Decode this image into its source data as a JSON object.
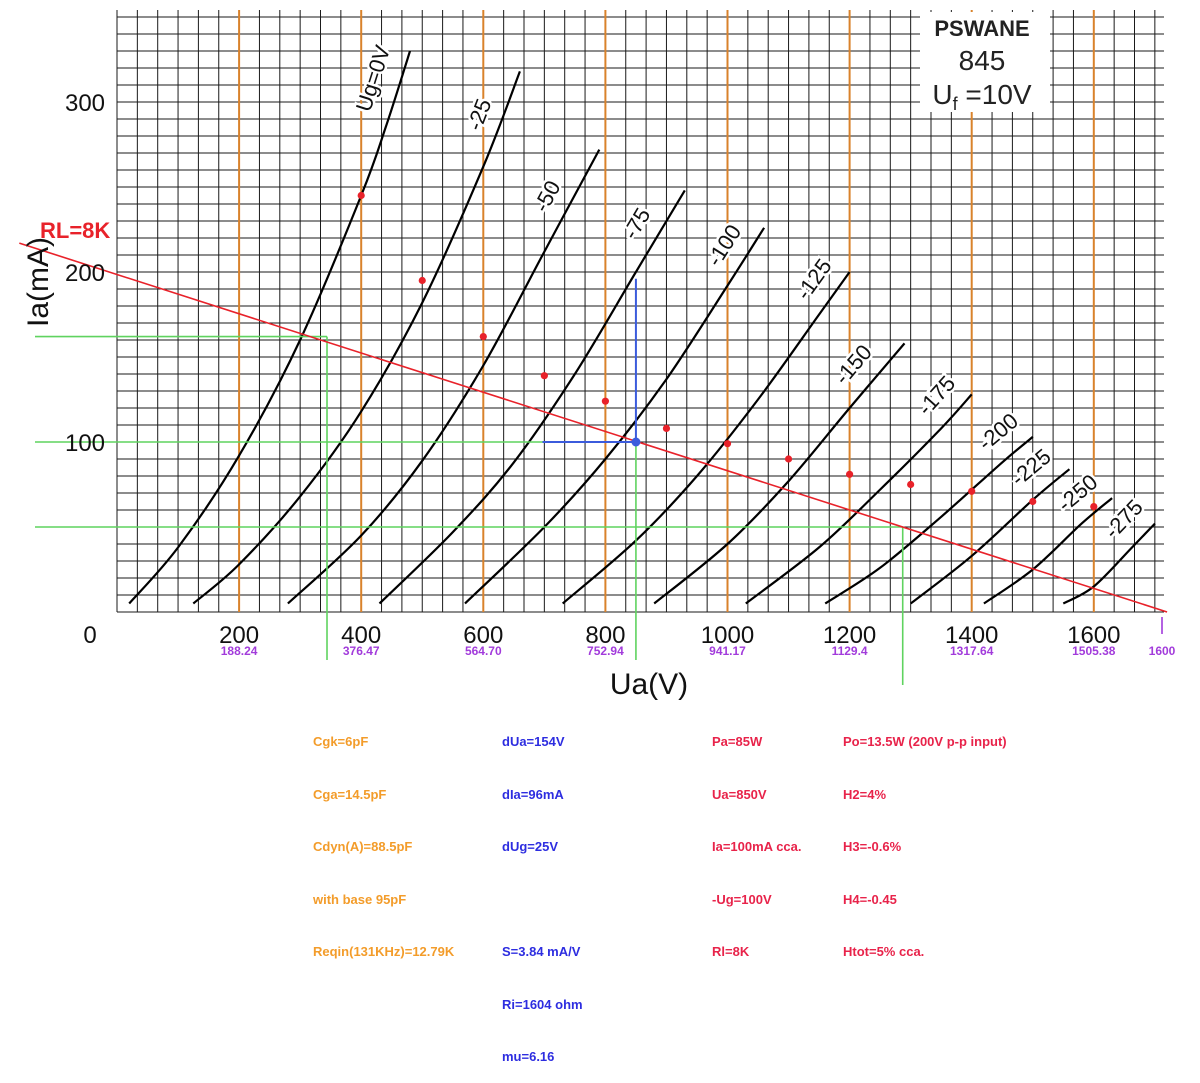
{
  "chart_data": {
    "type": "line",
    "tube": {
      "brand": "PSWANE",
      "model": "845",
      "filament_prefix": "U",
      "filament_sub": "f",
      "filament_value": " =10V"
    },
    "xlabel": "Ua(V)",
    "ylabel": "Ia(mA)",
    "xlim": [
      0,
      1700
    ],
    "ylim": [
      0,
      350
    ],
    "x_ticks": [
      "0",
      "200",
      "400",
      "600",
      "800",
      "1000",
      "1200",
      "1400",
      "1600"
    ],
    "y_ticks": [
      "100",
      "200",
      "300"
    ],
    "scaled_ticks": [
      "188.24",
      "376.47",
      "564.70",
      "752.94",
      "941.17",
      "1129.4",
      "1317.64",
      "1505.38",
      "1600"
    ],
    "grid": true,
    "ug_curves": [
      {
        "label": "Ug=0V",
        "points": [
          [
            20,
            5
          ],
          [
            100,
            38
          ],
          [
            200,
            92
          ],
          [
            300,
            160
          ],
          [
            400,
            245
          ],
          [
            440,
            285
          ],
          [
            480,
            330
          ]
        ]
      },
      {
        "label": "-25",
        "points": [
          [
            125,
            5
          ],
          [
            200,
            28
          ],
          [
            300,
            68
          ],
          [
            400,
            118
          ],
          [
            500,
            182
          ],
          [
            600,
            262
          ],
          [
            660,
            318
          ]
        ]
      },
      {
        "label": "-50",
        "points": [
          [
            280,
            5
          ],
          [
            400,
            45
          ],
          [
            500,
            89
          ],
          [
            600,
            145
          ],
          [
            700,
            212
          ],
          [
            790,
            272
          ]
        ]
      },
      {
        "label": "-75",
        "points": [
          [
            430,
            5
          ],
          [
            550,
            47
          ],
          [
            650,
            88
          ],
          [
            750,
            140
          ],
          [
            850,
            200
          ],
          [
            930,
            248
          ]
        ]
      },
      {
        "label": "-100",
        "points": [
          [
            570,
            5
          ],
          [
            700,
            50
          ],
          [
            800,
            90
          ],
          [
            900,
            137
          ],
          [
            1000,
            192
          ],
          [
            1060,
            226
          ]
        ]
      },
      {
        "label": "-125",
        "points": [
          [
            730,
            5
          ],
          [
            850,
            42
          ],
          [
            950,
            80
          ],
          [
            1050,
            125
          ],
          [
            1150,
            175
          ],
          [
            1200,
            200
          ]
        ]
      },
      {
        "label": "-150",
        "points": [
          [
            880,
            5
          ],
          [
            1000,
            40
          ],
          [
            1100,
            77
          ],
          [
            1200,
            120
          ],
          [
            1290,
            158
          ]
        ]
      },
      {
        "label": "-175",
        "points": [
          [
            1030,
            5
          ],
          [
            1150,
            38
          ],
          [
            1250,
            72
          ],
          [
            1350,
            108
          ],
          [
            1400,
            128
          ]
        ]
      },
      {
        "label": "-200",
        "points": [
          [
            1160,
            5
          ],
          [
            1250,
            26
          ],
          [
            1350,
            56
          ],
          [
            1450,
            88
          ],
          [
            1500,
            103
          ]
        ]
      },
      {
        "label": "-225",
        "points": [
          [
            1300,
            5
          ],
          [
            1400,
            33
          ],
          [
            1500,
            66
          ],
          [
            1560,
            84
          ]
        ]
      },
      {
        "label": "-250",
        "points": [
          [
            1420,
            5
          ],
          [
            1500,
            25
          ],
          [
            1580,
            52
          ],
          [
            1630,
            67
          ]
        ]
      },
      {
        "label": "-275",
        "points": [
          [
            1550,
            5
          ],
          [
            1600,
            15
          ],
          [
            1660,
            37
          ],
          [
            1700,
            52
          ]
        ]
      }
    ],
    "load_line": {
      "label": "RL=8K",
      "points": [
        [
          -160,
          217
        ],
        [
          1720,
          0
        ]
      ]
    },
    "red_points": [
      [
        400,
        245
      ],
      [
        500,
        195
      ],
      [
        600,
        162
      ],
      [
        700,
        139
      ],
      [
        800,
        124
      ],
      [
        900,
        108
      ],
      [
        1000,
        99
      ],
      [
        1100,
        90
      ],
      [
        1200,
        81
      ],
      [
        1300,
        75
      ],
      [
        1400,
        71
      ],
      [
        1500,
        65
      ],
      [
        1600,
        62
      ]
    ],
    "operating_point": [
      850,
      100
    ],
    "slope_triangle": {
      "x_left": 697,
      "x_right": 850,
      "y_base": 100,
      "y_top": 196
    },
    "green_guides": [
      {
        "x": 344,
        "y": 162
      },
      {
        "x": 850,
        "y": 100
      },
      {
        "x": 1287,
        "y": 50
      }
    ],
    "colors": {
      "grid": "#1a1a1a",
      "curve": "#000000",
      "orange_verticals": "#d9822b",
      "load_line": "#e8222a",
      "dots": "#e8222a",
      "blue": "#3b5bdc",
      "green": "#5fd35f",
      "purple": "#a23bdb",
      "note_orange": "#f39c2a",
      "note_blue": "#2d2de0",
      "note_red": "#e8234a"
    }
  },
  "notes": {
    "capacitances": [
      "Cgk=6pF",
      "Cga=14.5pF",
      "Cdyn(A)=88.5pF",
      "with base 95pF",
      "Reqin(131KHz)=12.79K"
    ],
    "slope": [
      "dUa=154V",
      "dIa=96mA",
      "dUg=25V",
      "",
      "S=3.84 mA/V",
      "Ri=1604 ohm",
      "mu=6.16"
    ],
    "operating": [
      "Pa=85W",
      "Ua=850V",
      "Ia=100mA cca.",
      "-Ug=100V",
      "Rl=8K"
    ],
    "output": [
      "Po=13.5W (200V p-p input)",
      "H2=4%",
      "H3=-0.6%",
      "H4=-0.45",
      "Htot=5% cca."
    ]
  }
}
